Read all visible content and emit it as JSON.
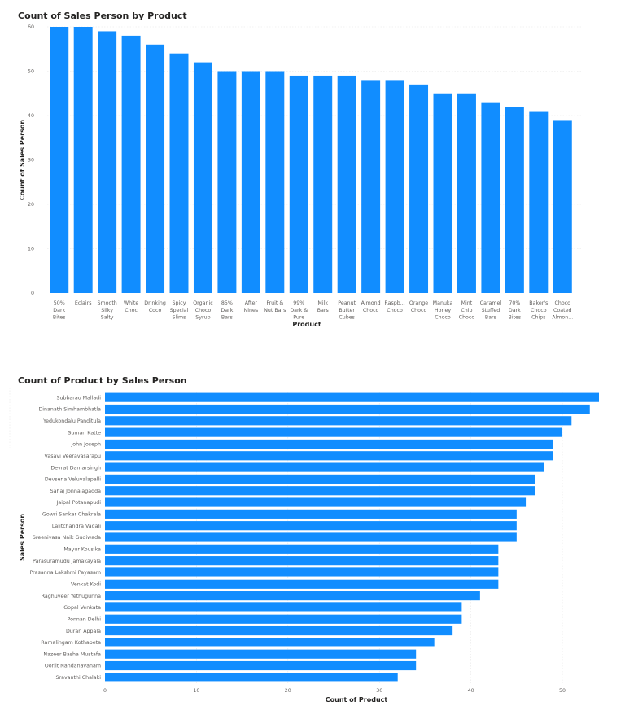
{
  "chart_data": [
    {
      "type": "bar",
      "orientation": "vertical",
      "title": "Count of Sales Person by Product",
      "xlabel": "Product",
      "ylabel": "Count of Sales Person",
      "ylim": [
        0,
        60
      ],
      "yticks": [
        0,
        10,
        20,
        30,
        40,
        50,
        60
      ],
      "color": "#118dff",
      "categories": [
        "50% Dark Bites",
        "Eclairs",
        "Smooth Silky Salty",
        "White Choc",
        "Drinking Coco",
        "Spicy Special Slims",
        "Organic Choco Syrup",
        "85% Dark Bars",
        "After Nines",
        "Fruit & Nut Bars",
        "99% Dark & Pure",
        "Milk Bars",
        "Peanut Butter Cubes",
        "Almond Choco",
        "Raspb... Choco",
        "Orange Choco",
        "Manuka Honey Choco",
        "Mint Chip Choco",
        "Caramel Stuffed Bars",
        "70% Dark Bites",
        "Baker's Choco Chips",
        "Choco Coated Almon..."
      ],
      "category_lines": [
        [
          "50%",
          "Dark",
          "Bites"
        ],
        [
          "Eclairs"
        ],
        [
          "Smooth",
          "Silky",
          "Salty"
        ],
        [
          "White",
          "Choc"
        ],
        [
          "Drinking",
          "Coco"
        ],
        [
          "Spicy",
          "Special",
          "Slims"
        ],
        [
          "Organic",
          "Choco",
          "Syrup"
        ],
        [
          "85%",
          "Dark",
          "Bars"
        ],
        [
          "After",
          "Nines"
        ],
        [
          "Fruit &",
          "Nut Bars"
        ],
        [
          "99%",
          "Dark &",
          "Pure"
        ],
        [
          "Milk",
          "Bars"
        ],
        [
          "Peanut",
          "Butter",
          "Cubes"
        ],
        [
          "Almond",
          "Choco"
        ],
        [
          "Raspb...",
          "Choco"
        ],
        [
          "Orange",
          "Choco"
        ],
        [
          "Manuka",
          "Honey",
          "Choco"
        ],
        [
          "Mint",
          "Chip",
          "Choco"
        ],
        [
          "Caramel",
          "Stuffed",
          "Bars"
        ],
        [
          "70%",
          "Dark",
          "Bites"
        ],
        [
          "Baker's",
          "Choco",
          "Chips"
        ],
        [
          "Choco",
          "Coated",
          "Almon..."
        ]
      ],
      "values": [
        60,
        60,
        59,
        58,
        56,
        54,
        52,
        50,
        50,
        50,
        49,
        49,
        49,
        48,
        48,
        47,
        45,
        45,
        43,
        42,
        41,
        39
      ]
    },
    {
      "type": "bar",
      "orientation": "horizontal",
      "title": "Count of Product by Sales Person",
      "xlabel": "Count of Product",
      "ylabel": "Sales Person",
      "xlim": [
        0,
        54
      ],
      "xticks": [
        0,
        10,
        20,
        30,
        40,
        50
      ],
      "color": "#118dff",
      "categories": [
        "Subbarao Malladi",
        "Dinanath Simhambhatla",
        "Yedukondalu Panditula",
        "Suman Katte",
        "John Joseph",
        "Vasavi Veeravasarapu",
        "Devrat Damarsingh",
        "Devsena Veluvalapalli",
        "Sahaj Jonnalagadda",
        "Jaipal Potanapudi",
        "Gowri Sankar Chakrala",
        "Lalitchandra Vadali",
        "Sreenivasa Naik Gudiwada",
        "Mayur Kousika",
        "Parasuramudu Jamakayala",
        "Prasanna Lakshmi Payasam",
        "Venkat Kodi",
        "Raghuveer Yethugunna",
        "Gopal Venkata",
        "Ponnan Delhi",
        "Duran Appala",
        "Ramalingam Kothapeta",
        "Nazeer Basha Mustafa",
        "Oorjit Nandanavanam",
        "Sravanthi Chalaki"
      ],
      "values": [
        54,
        53,
        51,
        50,
        49,
        49,
        48,
        47,
        47,
        46,
        45,
        45,
        45,
        43,
        43,
        43,
        43,
        41,
        39,
        39,
        38,
        36,
        34,
        34,
        32
      ]
    }
  ]
}
